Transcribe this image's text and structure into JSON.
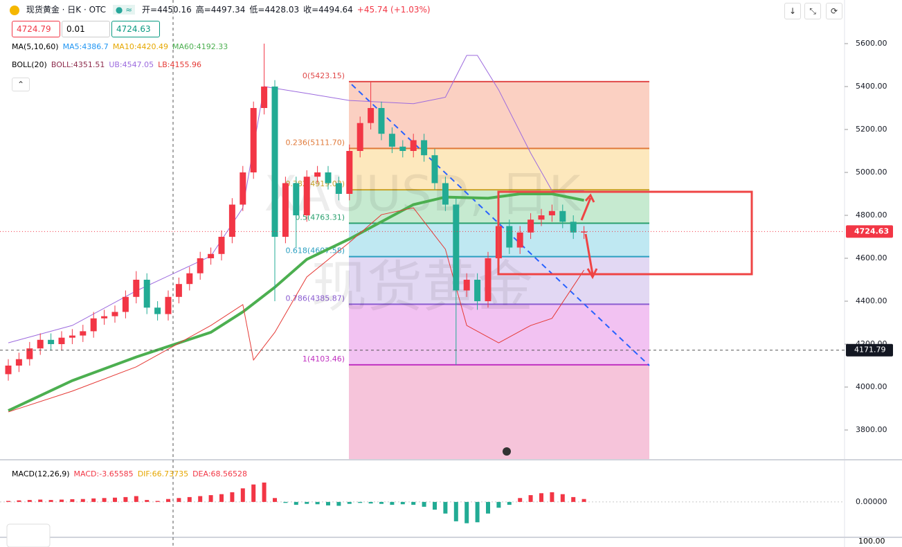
{
  "toolbar": {
    "symbol": "现货黄金 · 日K · OTC",
    "ohlc": [
      "开=4450.16",
      "高=4497.34",
      "低=4428.03",
      "收=4494.64",
      "+45.74 (+1.03%)"
    ],
    "sell": "4724.79",
    "qty": "0.01",
    "buy": "4724.63"
  },
  "indicators": {
    "ma": [
      "MA(5,10,60)",
      "MA5:4386.7",
      "MA10:4420.49",
      "MA60:4192.33"
    ],
    "boll": [
      "BOLL(20)",
      "BOLL:4351.51",
      "UB:4547.05",
      "LB:4155.96"
    ],
    "macd": [
      "MACD(12,26,9)",
      "MACD:-3.65585",
      "DIF:66.73735",
      "DEA:68.56528"
    ],
    "lower_axis_label": "100.00"
  },
  "watermark": [
    "XAUUSD, 日K",
    "现货黄金"
  ],
  "chart_data": {
    "type": "candlestick",
    "up_color": "#f23645",
    "down_color": "#22ab94",
    "open": [
      4060,
      4100,
      4130,
      4180,
      4220,
      4200,
      4230,
      4240,
      4260,
      4320,
      4330,
      4350,
      4420,
      4500,
      4370,
      4340,
      4420,
      4480,
      4530,
      4600,
      4620,
      4700,
      4850,
      5000,
      5300,
      5400,
      4700,
      4950,
      4800,
      4980,
      5000,
      4950,
      4900,
      5100,
      5230,
      5300,
      5180,
      5120,
      5100,
      5150,
      5080,
      4950,
      4850,
      4450,
      4500,
      4400,
      4600,
      4750,
      4650,
      4720,
      4780,
      4800,
      4820,
      4770,
      4720
    ],
    "high": [
      4130,
      4160,
      4210,
      4250,
      4250,
      4260,
      4270,
      4290,
      4350,
      4360,
      4380,
      4450,
      4540,
      4530,
      4400,
      4450,
      4510,
      4560,
      4630,
      4650,
      4730,
      4880,
      5030,
      5330,
      5600,
      5430,
      4980,
      4980,
      5010,
      5030,
      5030,
      4980,
      5130,
      5260,
      5420,
      5330,
      5210,
      5150,
      5180,
      5180,
      5110,
      4980,
      4880,
      4530,
      4530,
      4630,
      4780,
      4780,
      4750,
      4810,
      4830,
      4850,
      4850,
      4800,
      4750
    ],
    "low": [
      4030,
      4070,
      4100,
      4150,
      4170,
      4170,
      4200,
      4210,
      4230,
      4290,
      4300,
      4320,
      4390,
      4340,
      4310,
      4310,
      4390,
      4450,
      4500,
      4570,
      4590,
      4670,
      4820,
      4970,
      5270,
      4400,
      4670,
      4650,
      4770,
      4950,
      4920,
      4870,
      4870,
      5070,
      5200,
      5150,
      5090,
      5070,
      5070,
      5050,
      4920,
      4820,
      4103.46,
      4420,
      4360,
      4370,
      4570,
      4620,
      4620,
      4690,
      4750,
      4770,
      4740,
      4690,
      4690
    ],
    "close": [
      4100,
      4130,
      4180,
      4220,
      4200,
      4230,
      4240,
      4260,
      4320,
      4330,
      4350,
      4420,
      4500,
      4370,
      4340,
      4420,
      4480,
      4530,
      4600,
      4620,
      4700,
      4850,
      5000,
      5300,
      5400,
      4700,
      4950,
      4800,
      4980,
      5000,
      4950,
      4900,
      5100,
      5230,
      5300,
      5180,
      5120,
      5100,
      5150,
      5080,
      4950,
      4850,
      4450,
      4500,
      4400,
      4600,
      4750,
      4650,
      4720,
      4780,
      4800,
      4820,
      4770,
      4720,
      4724.63
    ],
    "lines": [
      {
        "color": "#4caf50",
        "width": 4,
        "x": [
          0,
          6,
          12,
          19,
          22,
          25,
          28,
          32,
          35,
          38,
          41,
          45,
          48,
          51,
          54
        ],
        "values": [
          3890,
          4030,
          4140,
          4255,
          4350,
          4465,
          4595,
          4690,
          4770,
          4850,
          4885,
          4880,
          4900,
          4900,
          4870
        ]
      },
      {
        "color": "#9c6ade",
        "width": 1,
        "x": [
          0,
          6,
          12,
          19,
          22,
          24,
          28,
          32,
          38,
          41,
          43,
          44,
          46,
          49,
          51,
          54
        ],
        "values": [
          4206,
          4287,
          4448,
          4610,
          4835,
          5400,
          5368,
          5335,
          5320,
          5350,
          5545,
          5545,
          5384,
          5090,
          4915,
          4915
        ]
      },
      {
        "color": "#e53935",
        "width": 1,
        "x": [
          0,
          6,
          12,
          19,
          22,
          23,
          25,
          28,
          32,
          35,
          38,
          41,
          43,
          46,
          49,
          51,
          54
        ],
        "values": [
          3884,
          3981,
          4094,
          4287,
          4384,
          4126,
          4255,
          4513,
          4674,
          4803,
          4835,
          4642,
          4287,
          4206,
          4287,
          4320,
          4545
        ]
      }
    ],
    "ylim": [
      3664.5,
      5803.2
    ],
    "yticks": [
      {
        "value": 3800,
        "label": "3800.00"
      },
      {
        "value": 4000,
        "label": "4000.00"
      },
      {
        "value": 4200,
        "label": "4200.00"
      },
      {
        "value": 4400,
        "label": "4400.00"
      },
      {
        "value": 4600,
        "label": "4600.00"
      },
      {
        "value": 4800,
        "label": "4800.00"
      },
      {
        "value": 5000,
        "label": "5000.00"
      },
      {
        "value": 5200,
        "label": "5200.00"
      },
      {
        "value": 5400,
        "label": "5400.00"
      },
      {
        "value": 5600,
        "label": "5600.00"
      }
    ],
    "fib": [
      {
        "value": 5423.15,
        "label": "0(5423.15)",
        "color": "#e04848",
        "fill": "#fbd0c2"
      },
      {
        "value": 5111.7,
        "label": "0.236(5111.70)",
        "color": "#e07a3a",
        "fill": "#fde8bd"
      },
      {
        "value": 4919.03,
        "label": "0.382(4919.03)",
        "color": "#c9a42a",
        "fill": "#c6ead0"
      },
      {
        "value": 4763.31,
        "label": "0.5(4763.31)",
        "color": "#2aa06e",
        "fill": "#bfe8f2"
      },
      {
        "value": 4607.58,
        "label": "0.618(4607.58)",
        "color": "#2a9fc0",
        "fill": "#e2d8f3"
      },
      {
        "value": 4385.87,
        "label": "0.786(4385.87)",
        "color": "#8a5cd0",
        "fill": "#f2c2f2"
      },
      {
        "value": 4103.46,
        "label": "1(4103.46)",
        "color": "#c030c0",
        "fill": "#f6c4da"
      }
    ],
    "last_price": 4724.63,
    "crosshair": 4171.79,
    "macd": {
      "values": [
        5,
        8,
        10,
        12,
        10,
        12,
        14,
        15,
        18,
        20,
        22,
        25,
        30,
        10,
        5,
        15,
        20,
        25,
        30,
        35,
        40,
        50,
        70,
        90,
        100,
        20,
        -5,
        -15,
        -10,
        -12,
        -18,
        -20,
        -10,
        -5,
        -8,
        -10,
        -15,
        -12,
        -15,
        -25,
        -40,
        -60,
        -100,
        -110,
        -105,
        -60,
        -30,
        -15,
        20,
        35,
        45,
        50,
        40,
        25,
        15
      ],
      "ylim": [
        -179,
        214
      ],
      "yticks": [
        {
          "value": 0,
          "label": "0.00000"
        }
      ]
    }
  }
}
